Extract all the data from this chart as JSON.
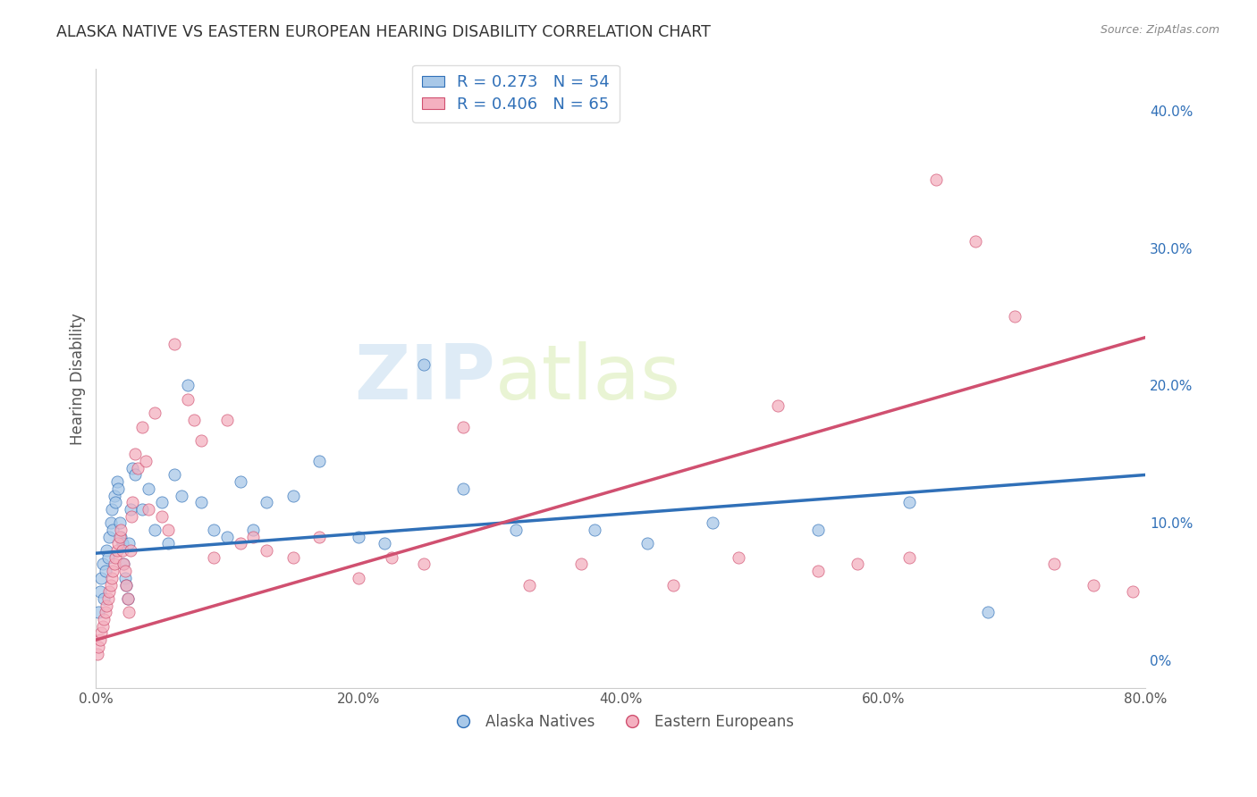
{
  "title": "ALASKA NATIVE VS EASTERN EUROPEAN HEARING DISABILITY CORRELATION CHART",
  "source": "Source: ZipAtlas.com",
  "ylabel": "Hearing Disability",
  "x_tick_labels": [
    "0.0%",
    "20.0%",
    "40.0%",
    "60.0%",
    "80.0%"
  ],
  "x_tick_values": [
    0.0,
    20.0,
    40.0,
    60.0,
    80.0
  ],
  "y_tick_labels_right": [
    "0%",
    "10.0%",
    "20.0%",
    "30.0%",
    "40.0%"
  ],
  "y_tick_values": [
    0.0,
    10.0,
    20.0,
    30.0,
    40.0
  ],
  "xlim": [
    0.0,
    80.0
  ],
  "ylim": [
    -2.0,
    43.0
  ],
  "blue_R": 0.273,
  "blue_N": 54,
  "pink_R": 0.406,
  "pink_N": 65,
  "blue_color": "#a8c8e8",
  "pink_color": "#f4b0c0",
  "blue_line_color": "#3070b8",
  "pink_line_color": "#d05070",
  "legend_label_blue": "Alaska Natives",
  "legend_label_pink": "Eastern Europeans",
  "watermark_zip": "ZIP",
  "watermark_atlas": "atlas",
  "background_color": "#ffffff",
  "grid_color": "#cccccc",
  "title_color": "#333333",
  "blue_line_start_y": 7.8,
  "blue_line_end_y": 13.5,
  "pink_line_start_y": 1.5,
  "pink_line_end_y": 23.5,
  "blue_x": [
    0.2,
    0.3,
    0.4,
    0.5,
    0.6,
    0.7,
    0.8,
    0.9,
    1.0,
    1.1,
    1.2,
    1.3,
    1.4,
    1.5,
    1.6,
    1.7,
    1.8,
    1.9,
    2.0,
    2.1,
    2.2,
    2.3,
    2.4,
    2.5,
    2.6,
    2.8,
    3.0,
    3.5,
    4.0,
    4.5,
    5.0,
    5.5,
    6.0,
    6.5,
    7.0,
    8.0,
    9.0,
    10.0,
    11.0,
    12.0,
    13.0,
    15.0,
    17.0,
    20.0,
    22.0,
    25.0,
    28.0,
    32.0,
    38.0,
    42.0,
    47.0,
    55.0,
    62.0,
    68.0
  ],
  "blue_y": [
    3.5,
    5.0,
    6.0,
    7.0,
    4.5,
    6.5,
    8.0,
    7.5,
    9.0,
    10.0,
    11.0,
    9.5,
    12.0,
    11.5,
    13.0,
    12.5,
    10.0,
    9.0,
    8.5,
    7.0,
    6.0,
    5.5,
    4.5,
    8.5,
    11.0,
    14.0,
    13.5,
    11.0,
    12.5,
    9.5,
    11.5,
    8.5,
    13.5,
    12.0,
    20.0,
    11.5,
    9.5,
    9.0,
    13.0,
    9.5,
    11.5,
    12.0,
    14.5,
    9.0,
    8.5,
    21.5,
    12.5,
    9.5,
    9.5,
    8.5,
    10.0,
    9.5,
    11.5,
    3.5
  ],
  "pink_x": [
    0.1,
    0.2,
    0.3,
    0.4,
    0.5,
    0.6,
    0.7,
    0.8,
    0.9,
    1.0,
    1.1,
    1.2,
    1.3,
    1.4,
    1.5,
    1.6,
    1.7,
    1.8,
    1.9,
    2.0,
    2.1,
    2.2,
    2.3,
    2.4,
    2.5,
    2.6,
    2.7,
    2.8,
    3.0,
    3.2,
    3.5,
    3.8,
    4.0,
    4.5,
    5.0,
    5.5,
    6.0,
    7.0,
    7.5,
    8.0,
    9.0,
    10.0,
    11.0,
    12.0,
    13.0,
    15.0,
    17.0,
    20.0,
    22.5,
    25.0,
    28.0,
    33.0,
    37.0,
    44.0,
    49.0,
    52.0,
    55.0,
    58.0,
    62.0,
    64.0,
    67.0,
    70.0,
    73.0,
    76.0,
    79.0
  ],
  "pink_y": [
    0.5,
    1.0,
    1.5,
    2.0,
    2.5,
    3.0,
    3.5,
    4.0,
    4.5,
    5.0,
    5.5,
    6.0,
    6.5,
    7.0,
    7.5,
    8.0,
    8.5,
    9.0,
    9.5,
    8.0,
    7.0,
    6.5,
    5.5,
    4.5,
    3.5,
    8.0,
    10.5,
    11.5,
    15.0,
    14.0,
    17.0,
    14.5,
    11.0,
    18.0,
    10.5,
    9.5,
    23.0,
    19.0,
    17.5,
    16.0,
    7.5,
    17.5,
    8.5,
    9.0,
    8.0,
    7.5,
    9.0,
    6.0,
    7.5,
    7.0,
    17.0,
    5.5,
    7.0,
    5.5,
    7.5,
    18.5,
    6.5,
    7.0,
    7.5,
    35.0,
    30.5,
    25.0,
    7.0,
    5.5,
    5.0
  ]
}
